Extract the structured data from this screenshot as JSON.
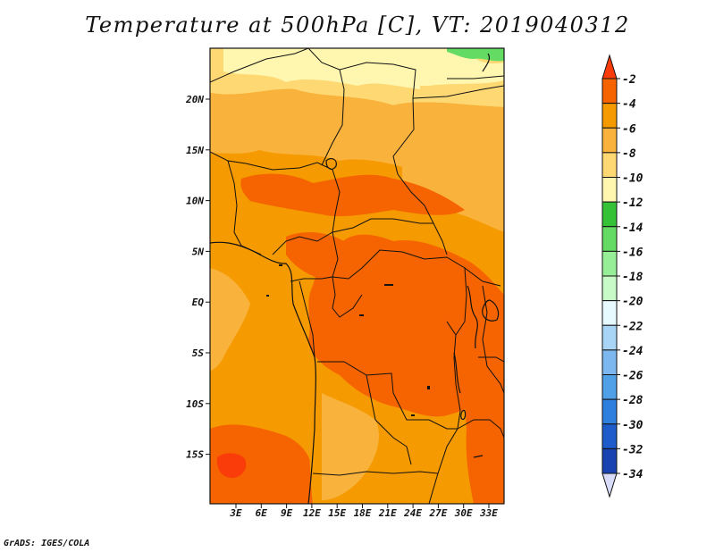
{
  "title": "Temperature at 500hPa [C], VT: 2019040312",
  "credit": "GrADS: IGES/COLA",
  "map": {
    "lat_ticks": [
      "20N",
      "15N",
      "10N",
      "5N",
      "EQ",
      "5S",
      "10S",
      "15S"
    ],
    "lon_ticks": [
      "3E",
      "6E",
      "9E",
      "12E",
      "15E",
      "18E",
      "21E",
      "24E",
      "27E",
      "30E",
      "33E"
    ]
  },
  "colorbar": {
    "labels": [
      "-2",
      "-4",
      "-6",
      "-8",
      "-10",
      "-12",
      "-14",
      "-16",
      "-18",
      "-20",
      "-22",
      "-24",
      "-26",
      "-28",
      "-30",
      "-32",
      "-34"
    ],
    "colors": [
      "#fa3c0a",
      "#f56400",
      "#f59a00",
      "#f9b23c",
      "#fdd873",
      "#fff7b0",
      "#36c236",
      "#64dc64",
      "#96ee96",
      "#c8fac8",
      "#e6faff",
      "#a8d4f5",
      "#7cb8ef",
      "#50a0e8",
      "#2f7fdf",
      "#1e5ccc",
      "#1843b0",
      "#0e1f7a",
      "#d8dcf8"
    ]
  }
}
